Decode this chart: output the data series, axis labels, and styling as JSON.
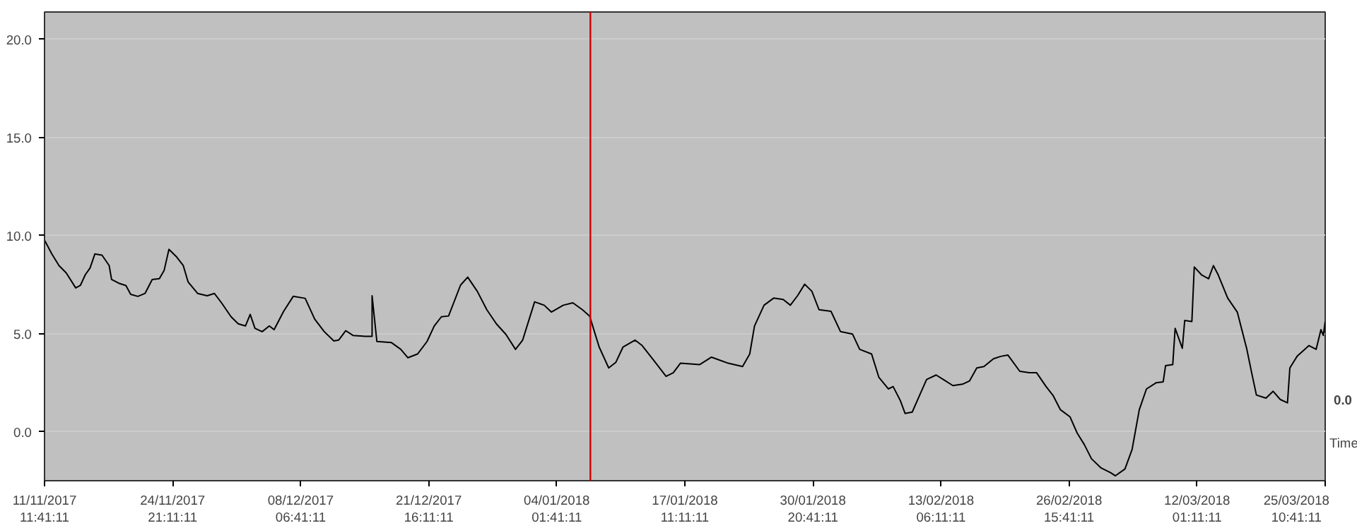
{
  "chart_data": {
    "type": "line",
    "xlabel": "Time",
    "annotations": [
      "0.0"
    ],
    "x": [
      "2017-11-11T11:41",
      "2017-11-12T06:00",
      "2017-11-13T00:00",
      "2017-11-13T18:00",
      "2017-11-14T18:00",
      "2017-11-15T06:00",
      "2017-11-15T18:00",
      "2017-11-16T06:00",
      "2017-11-16T18:00",
      "2017-11-17T12:00",
      "2017-11-18T06:00",
      "2017-11-18T12:00",
      "2017-11-19T06:00",
      "2017-11-20T00:00",
      "2017-11-20T12:00",
      "2017-11-21T06:00",
      "2017-11-22T00:00",
      "2017-11-22T18:00",
      "2017-11-23T12:00",
      "2017-11-24T00:00",
      "2017-11-24T12:00",
      "2017-11-25T06:00",
      "2017-11-26T00:00",
      "2017-11-26T12:00",
      "2017-11-27T12:00",
      "2017-11-28T12:00",
      "2017-11-29T06:00",
      "2017-11-30T00:00",
      "2017-12-01T00:00",
      "2017-12-01T18:00",
      "2017-12-02T12:00",
      "2017-12-03T00:00",
      "2017-12-03T12:00",
      "2017-12-04T06:00",
      "2017-12-05T00:00",
      "2017-12-05T12:00",
      "2017-12-06T12:00",
      "2017-12-07T12:00",
      "2017-12-08T18:00",
      "2017-12-09T18:00",
      "2017-12-10T18:00",
      "2017-12-11T18:00",
      "2017-12-12T06:00",
      "2017-12-13T00:00",
      "2017-12-13T18:00",
      "2017-12-15T00:00",
      "2017-12-15T18:00",
      "2017-12-15T18:00",
      "2017-12-16T06:00",
      "2017-12-17T18:00",
      "2017-12-18T18:00",
      "2017-12-19T12:00",
      "2017-12-20T12:00",
      "2017-12-21T12:00",
      "2017-12-22T06:00",
      "2017-12-23T00:00",
      "2017-12-23T18:00",
      "2017-12-25T00:00",
      "2017-12-25T18:00",
      "2017-12-26T18:00",
      "2017-12-27T18:00",
      "2017-12-28T18:00",
      "2017-12-29T18:00",
      "2017-12-30T18:00",
      "2017-12-31T12:00",
      "2018-01-01T18:00",
      "2018-01-02T18:00",
      "2018-01-03T12:00",
      "2018-01-04T18:00",
      "2018-01-05T18:00",
      "2018-01-06T18:00",
      "2018-01-07T12:00",
      "2018-01-08T12:00",
      "2018-01-09T12:00",
      "2018-01-10T06:00",
      "2018-01-11T00:00",
      "2018-01-12T06:00",
      "2018-01-13T00:00",
      "2018-01-14T00:00",
      "2018-01-15T12:00",
      "2018-01-16T06:00",
      "2018-01-17T00:00",
      "2018-01-19T00:00",
      "2018-01-20T06:00",
      "2018-01-22T00:00",
      "2018-01-23T12:00",
      "2018-01-24T06:00",
      "2018-01-24T18:00",
      "2018-01-25T18:00",
      "2018-01-26T18:00",
      "2018-01-27T18:00",
      "2018-01-28T12:00",
      "2018-01-29T06:00",
      "2018-01-30T00:00",
      "2018-01-30T18:00",
      "2018-01-31T12:00",
      "2018-02-01T18:00",
      "2018-02-02T18:00",
      "2018-02-04T00:00",
      "2018-02-04T18:00",
      "2018-02-06T00:00",
      "2018-02-06T18:00",
      "2018-02-07T18:00",
      "2018-02-08T06:00",
      "2018-02-09T00:00",
      "2018-02-09T12:00",
      "2018-02-10T06:00",
      "2018-02-11T00:00",
      "2018-02-11T18:00",
      "2018-02-12T18:00",
      "2018-02-13T12:00",
      "2018-02-14T12:00",
      "2018-02-15T12:00",
      "2018-02-16T06:00",
      "2018-02-17T00:00",
      "2018-02-17T18:00",
      "2018-02-18T18:00",
      "2018-02-19T12:00",
      "2018-02-20T06:00",
      "2018-02-21T12:00",
      "2018-02-22T12:00",
      "2018-02-23T06:00",
      "2018-02-24T06:00",
      "2018-02-25T00:00",
      "2018-02-25T18:00",
      "2018-02-26T18:00",
      "2018-02-27T12:00",
      "2018-02-28T06:00",
      "2018-03-01T00:00",
      "2018-03-02T00:00",
      "2018-03-03T00:00",
      "2018-03-03T12:00",
      "2018-03-04T12:00",
      "2018-03-05T06:00",
      "2018-03-06T00:00",
      "2018-03-06T18:00",
      "2018-03-07T18:00",
      "2018-03-08T12:00",
      "2018-03-08T18:00",
      "2018-03-09T12:00",
      "2018-03-09T18:00",
      "2018-03-10T12:00",
      "2018-03-10T18:00",
      "2018-03-11T12:00",
      "2018-03-11T18:00",
      "2018-03-12T12:00",
      "2018-03-13T06:00",
      "2018-03-13T18:00",
      "2018-03-14T06:00",
      "2018-03-15T06:00",
      "2018-03-16T06:00",
      "2018-03-17T06:00",
      "2018-03-17T18:00",
      "2018-03-18T06:00",
      "2018-03-19T06:00",
      "2018-03-20T00:00",
      "2018-03-20T18:00",
      "2018-03-21T12:00",
      "2018-03-21T18:00",
      "2018-03-22T12:00",
      "2018-03-23T18:00",
      "2018-03-24T12:00",
      "2018-03-25T00:00",
      "2018-03-25T06:00",
      "2018-03-25T10:41"
    ],
    "series": [
      {
        "color": "#000000",
        "values": [
          9.77,
          9.06,
          8.47,
          8.1,
          7.33,
          7.47,
          8.0,
          8.35,
          9.06,
          9.0,
          8.47,
          7.76,
          7.57,
          7.45,
          7.0,
          6.9,
          7.05,
          7.76,
          7.8,
          8.23,
          9.3,
          8.94,
          8.47,
          7.64,
          7.05,
          6.93,
          7.05,
          6.57,
          5.86,
          5.5,
          5.39,
          5.98,
          5.27,
          5.1,
          5.39,
          5.2,
          6.14,
          6.9,
          6.8,
          5.74,
          5.1,
          4.63,
          4.67,
          5.15,
          4.91,
          4.86,
          4.86,
          6.93,
          4.6,
          4.55,
          4.2,
          3.77,
          3.96,
          4.6,
          5.39,
          5.86,
          5.9,
          7.47,
          7.88,
          7.16,
          6.22,
          5.5,
          4.96,
          4.2,
          4.67,
          6.62,
          6.45,
          6.1,
          6.45,
          6.57,
          6.22,
          5.9,
          4.32,
          3.25,
          3.54,
          4.32,
          4.67,
          4.39,
          3.77,
          2.82,
          3.0,
          3.49,
          3.42,
          3.8,
          3.49,
          3.32,
          3.96,
          5.39,
          6.45,
          6.81,
          6.74,
          6.45,
          6.93,
          7.52,
          7.16,
          6.22,
          6.14,
          5.1,
          4.98,
          4.2,
          3.96,
          2.78,
          2.18,
          2.3,
          1.59,
          0.93,
          1.0,
          1.83,
          2.66,
          2.89,
          2.66,
          2.35,
          2.42,
          2.59,
          3.25,
          3.32,
          3.72,
          3.84,
          3.91,
          3.08,
          3.01,
          3.01,
          2.3,
          1.83,
          1.12,
          0.76,
          -0.07,
          -0.66,
          -1.38,
          -1.85,
          -2.09,
          -2.25,
          -1.9,
          -0.9,
          1.12,
          2.18,
          2.49,
          2.54,
          3.37,
          3.42,
          5.27,
          4.25,
          5.67,
          5.62,
          8.4,
          8.0,
          7.8,
          8.47,
          8.0,
          6.81,
          6.1,
          4.2,
          3.01,
          1.87,
          1.71,
          2.06,
          1.64,
          1.47,
          3.25,
          3.84,
          4.39,
          4.2,
          5.2,
          4.91,
          5.62
        ]
      }
    ],
    "xlim": [
      "2017-11-11T11:41",
      "2018-03-25T10:41"
    ],
    "xticks": [
      {
        "value": "2017-11-11T11:41",
        "label": "11/11/2017\n11:41:11"
      },
      {
        "value": "2017-11-24T21:11",
        "label": "24/11/2017\n21:11:11"
      },
      {
        "value": "2017-12-08T06:41",
        "label": "08/12/2017\n06:41:11"
      },
      {
        "value": "2017-12-21T16:11",
        "label": "21/12/2017\n16:11:11"
      },
      {
        "value": "2018-01-04T01:41",
        "label": "04/01/2018\n01:41:11"
      },
      {
        "value": "2018-01-17T11:11",
        "label": "17/01/2018\n11:11:11"
      },
      {
        "value": "2018-01-30T20:41",
        "label": "30/01/2018\n20:41:11"
      },
      {
        "value": "2018-02-13T06:11",
        "label": "13/02/2018\n06:11:11"
      },
      {
        "value": "2018-02-26T15:41",
        "label": "26/02/2018\n15:41:11"
      },
      {
        "value": "2018-03-12T01:11",
        "label": "12/03/2018\n01:11:11"
      },
      {
        "value": "2018-03-25T10:41",
        "label": "25/03/2018\n10:41:11"
      }
    ],
    "ylim": [
      -2.5,
      21.4
    ],
    "yticks": [
      {
        "value": 0,
        "label": "0.0"
      },
      {
        "value": 5,
        "label": "5.0"
      },
      {
        "value": 10,
        "label": "10.0"
      },
      {
        "value": 15,
        "label": "15.0"
      },
      {
        "value": 20,
        "label": "20.0"
      }
    ],
    "grid": "y",
    "marker": "none",
    "line_style": "solid",
    "ref_lines": [
      {
        "axis": "x",
        "value": "2018-01-07T14:00",
        "color": "#cc0000"
      }
    ]
  }
}
